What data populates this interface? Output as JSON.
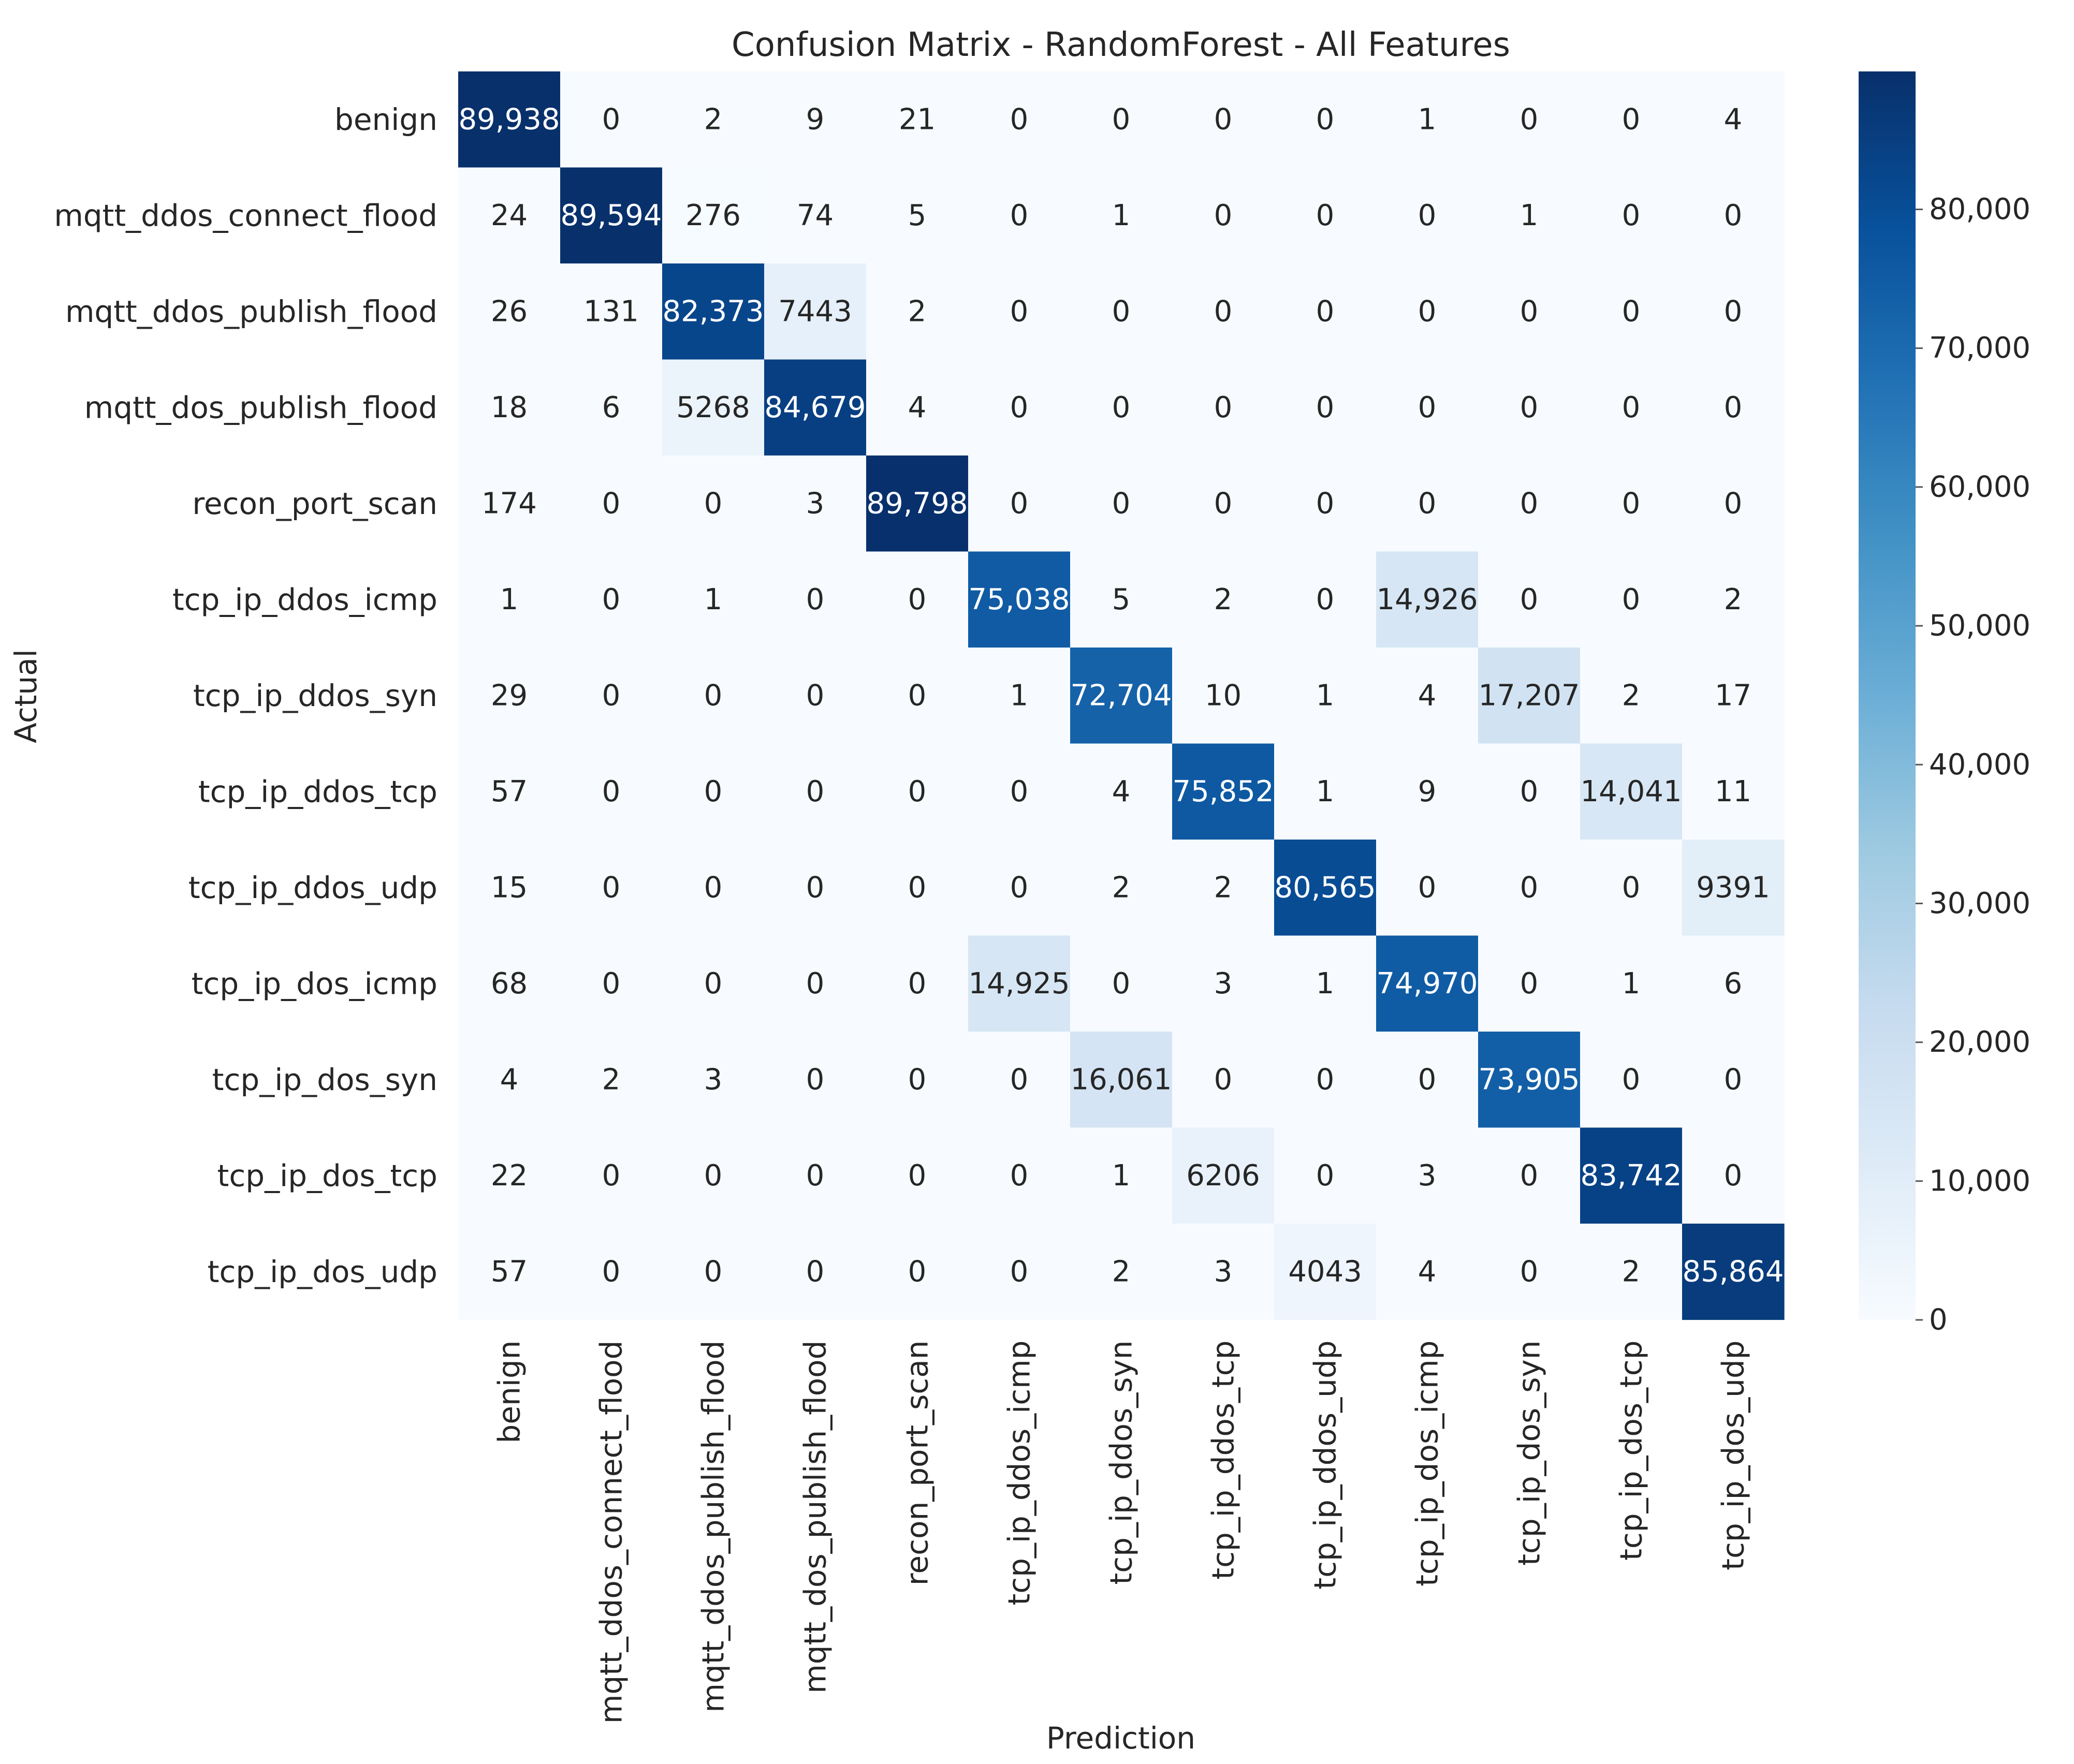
{
  "chart_data": {
    "type": "heatmap",
    "title": "Confusion Matrix - RandomForest - All Features",
    "xlabel": "Prediction",
    "ylabel": "Actual",
    "row_labels": [
      "benign",
      "mqtt_ddos_connect_flood",
      "mqtt_ddos_publish_flood",
      "mqtt_dos_publish_flood",
      "recon_port_scan",
      "tcp_ip_ddos_icmp",
      "tcp_ip_ddos_syn",
      "tcp_ip_ddos_tcp",
      "tcp_ip_ddos_udp",
      "tcp_ip_dos_icmp",
      "tcp_ip_dos_syn",
      "tcp_ip_dos_tcp",
      "tcp_ip_dos_udp"
    ],
    "col_labels": [
      "benign",
      "mqtt_ddos_connect_flood",
      "mqtt_ddos_publish_flood",
      "mqtt_dos_publish_flood",
      "recon_port_scan",
      "tcp_ip_ddos_icmp",
      "tcp_ip_ddos_syn",
      "tcp_ip_ddos_tcp",
      "tcp_ip_ddos_udp",
      "tcp_ip_dos_icmp",
      "tcp_ip_dos_syn",
      "tcp_ip_dos_tcp",
      "tcp_ip_dos_udp"
    ],
    "values": [
      [
        89938,
        0,
        2,
        9,
        21,
        0,
        0,
        0,
        0,
        1,
        0,
        0,
        4
      ],
      [
        24,
        89594,
        276,
        74,
        5,
        0,
        1,
        0,
        0,
        0,
        1,
        0,
        0
      ],
      [
        26,
        131,
        82373,
        7443,
        2,
        0,
        0,
        0,
        0,
        0,
        0,
        0,
        0
      ],
      [
        18,
        6,
        5268,
        84679,
        4,
        0,
        0,
        0,
        0,
        0,
        0,
        0,
        0
      ],
      [
        174,
        0,
        0,
        3,
        89798,
        0,
        0,
        0,
        0,
        0,
        0,
        0,
        0
      ],
      [
        1,
        0,
        1,
        0,
        0,
        75038,
        5,
        2,
        0,
        14926,
        0,
        0,
        2
      ],
      [
        29,
        0,
        0,
        0,
        0,
        1,
        72704,
        10,
        1,
        4,
        17207,
        2,
        17
      ],
      [
        57,
        0,
        0,
        0,
        0,
        0,
        4,
        75852,
        1,
        9,
        0,
        14041,
        11
      ],
      [
        15,
        0,
        0,
        0,
        0,
        0,
        2,
        2,
        80565,
        0,
        0,
        0,
        9391
      ],
      [
        68,
        0,
        0,
        0,
        0,
        14925,
        0,
        3,
        1,
        74970,
        0,
        1,
        6
      ],
      [
        4,
        2,
        3,
        0,
        0,
        0,
        16061,
        0,
        0,
        0,
        73905,
        0,
        0
      ],
      [
        22,
        0,
        0,
        0,
        0,
        0,
        1,
        6206,
        0,
        3,
        0,
        83742,
        0
      ],
      [
        57,
        0,
        0,
        0,
        0,
        0,
        2,
        3,
        4043,
        4,
        0,
        2,
        85864
      ]
    ],
    "colorbar": {
      "min": 0,
      "max": 89938,
      "ticks": [
        0,
        10000,
        20000,
        30000,
        40000,
        50000,
        60000,
        70000,
        80000
      ],
      "tick_labels": [
        "0",
        "10,000",
        "20,000",
        "30,000",
        "40,000",
        "50,000",
        "60,000",
        "70,000",
        "80,000"
      ],
      "colormap": "Blues",
      "colors": [
        "#f7fbff",
        "#deebf7",
        "#c6dbef",
        "#9ecae1",
        "#6baed6",
        "#4292c6",
        "#2171b5",
        "#08519c",
        "#08306b"
      ]
    }
  }
}
